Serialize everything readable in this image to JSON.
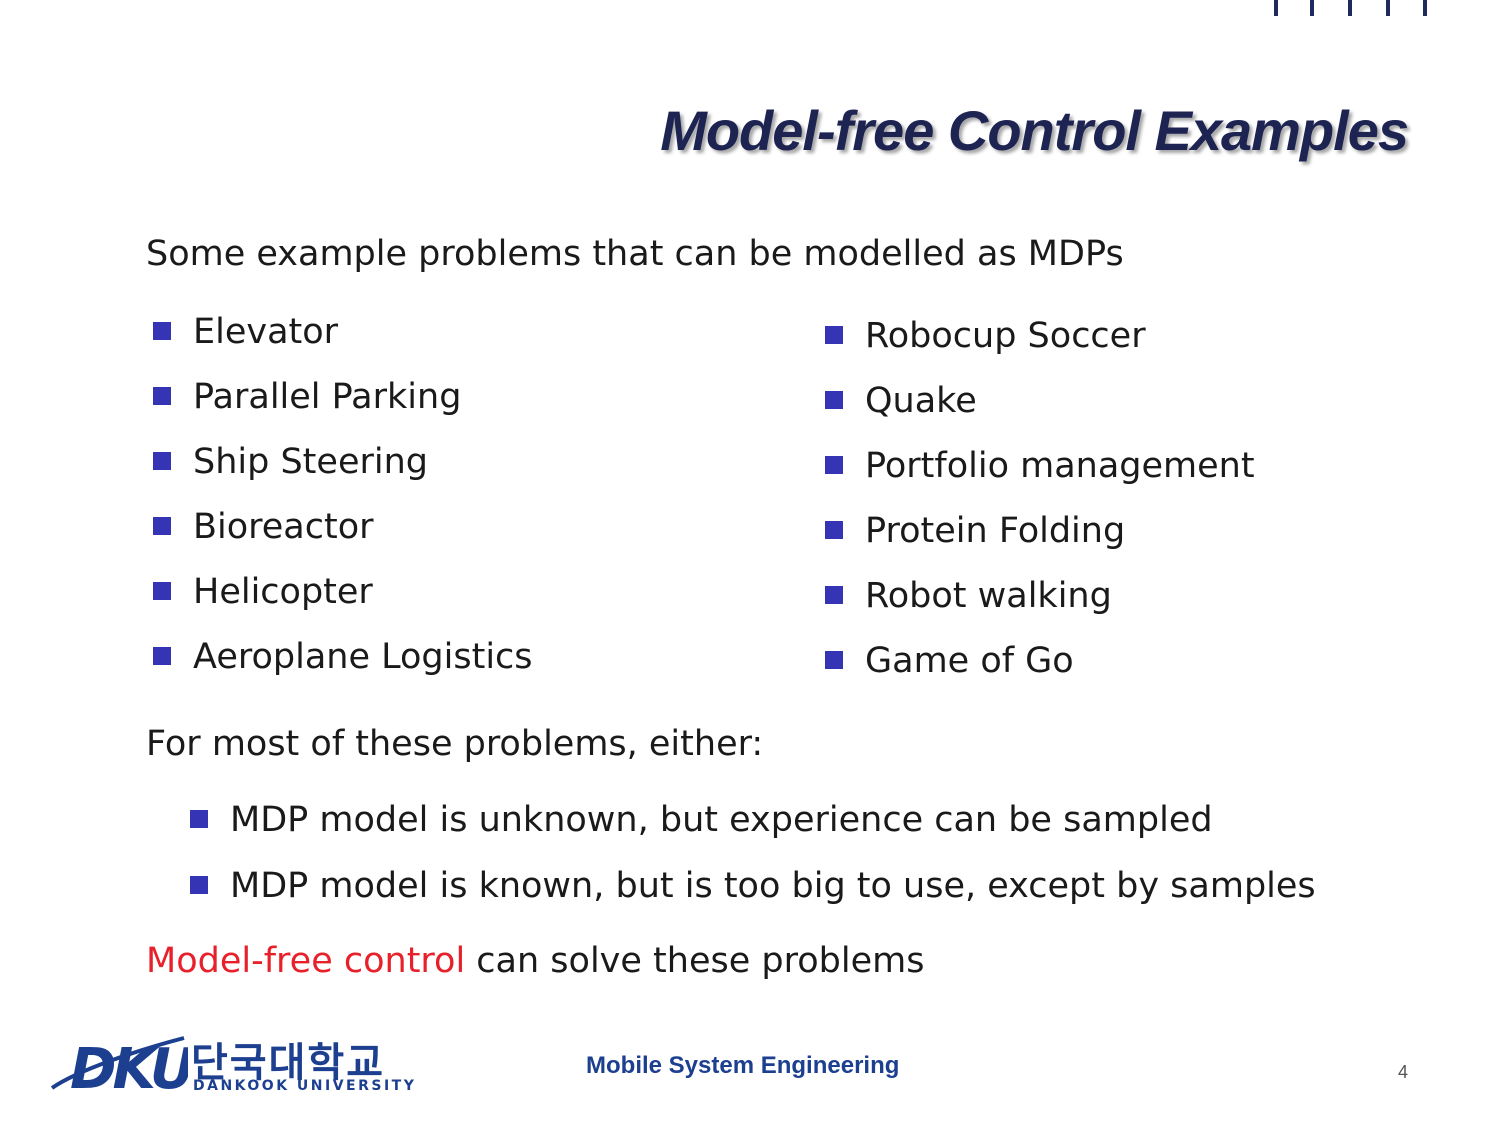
{
  "header": {
    "title": "Model-free Control Examples"
  },
  "intro": "Some example problems that can be modelled as MDPs",
  "examples_left": [
    "Elevator",
    "Parallel Parking",
    "Ship Steering",
    "Bioreactor",
    "Helicopter",
    "Aeroplane Logistics"
  ],
  "examples_right": [
    "Robocup Soccer",
    "Quake",
    "Portfolio management",
    "Protein Folding",
    "Robot walking",
    "Game of Go"
  ],
  "either_text": "For most of these problems, either:",
  "conditions": [
    "MDP model is unknown, but experience can be sampled",
    "MDP model is known, but is too big to use, except by samples"
  ],
  "conclusion": {
    "highlight": "Model-free control",
    "rest": " can solve these problems"
  },
  "footer": {
    "logo_mark": "DKU",
    "logo_korean": "단국대학교",
    "logo_english": "DANKOOK UNIVERSITY",
    "course": "Mobile System Engineering",
    "page_number": "4"
  },
  "colors": {
    "title": "#1e2452",
    "bullet": "#3434b4",
    "highlight": "#e8202a",
    "brand": "#1c3f8f"
  }
}
